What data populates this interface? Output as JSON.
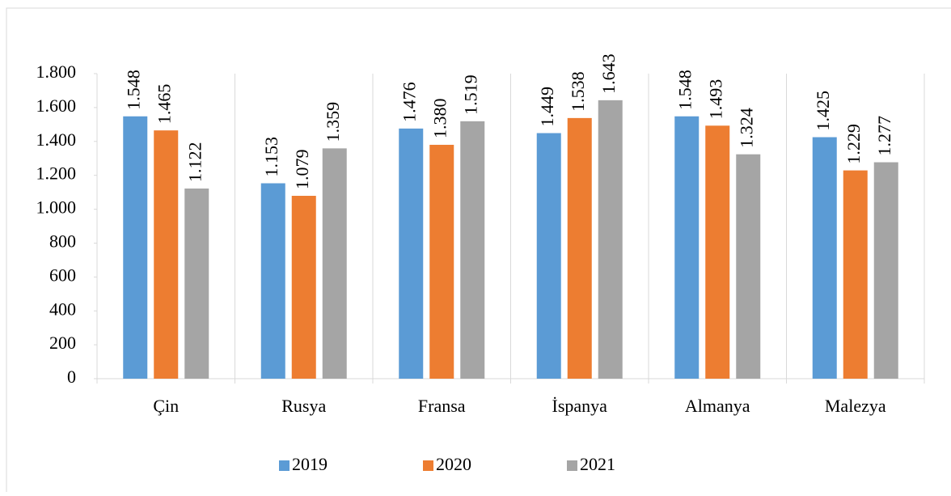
{
  "chart_data": {
    "type": "bar",
    "categories": [
      "Çin",
      "Rusya",
      "Fransa",
      "İspanya",
      "Almanya",
      "Malezya"
    ],
    "series": [
      {
        "name": "2019",
        "color": "#5b9bd5",
        "values": [
          1548,
          1153,
          1476,
          1449,
          1548,
          1425
        ],
        "value_labels": [
          "1.548",
          "1.153",
          "1.476",
          "1.449",
          "1.548",
          "1.425"
        ]
      },
      {
        "name": "2020",
        "color": "#ed7d31",
        "values": [
          1465,
          1079,
          1380,
          1538,
          1493,
          1229
        ],
        "value_labels": [
          "1.465",
          "1.079",
          "1.380",
          "1.538",
          "1.493",
          "1.229"
        ]
      },
      {
        "name": "2021",
        "color": "#a5a5a5",
        "values": [
          1122,
          1359,
          1519,
          1643,
          1324,
          1277
        ],
        "value_labels": [
          "1.122",
          "1.359",
          "1.519",
          "1.643",
          "1.324",
          "1.277"
        ]
      }
    ],
    "ylim": [
      0,
      1800
    ],
    "yticks": [
      0,
      200,
      400,
      600,
      800,
      {
        "value": 1000,
        "label": "1.000"
      },
      {
        "value": 1200,
        "label": "1.200"
      },
      {
        "value": 1400,
        "label": "1.400"
      },
      {
        "value": 1600,
        "label": "1.600"
      },
      {
        "value": 1800,
        "label": "1.800"
      }
    ],
    "legend": "bottom"
  }
}
